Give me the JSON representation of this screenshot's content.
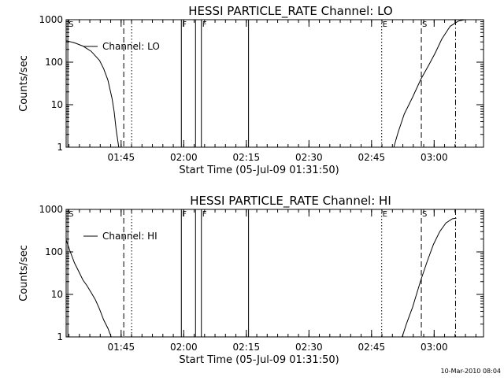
{
  "footer": {
    "timestamp": "10-Mar-2010 08:04"
  },
  "chart_data": [
    {
      "type": "line",
      "title": "HESSI PARTICLE_RATE Channel: LO",
      "xlabel": "Start Time (05-Jul-09 01:31:50)",
      "ylabel": "Counts/sec",
      "yscale": "log",
      "ylim": [
        1,
        1000
      ],
      "xlim_minutes": [
        0,
        100
      ],
      "xticks": [
        {
          "label": "01:45",
          "value": 13.17
        },
        {
          "label": "02:00",
          "value": 28.17
        },
        {
          "label": "02:15",
          "value": 43.17
        },
        {
          "label": "02:30",
          "value": 58.17
        },
        {
          "label": "02:45",
          "value": 73.17
        },
        {
          "label": "03:00",
          "value": 88.17
        }
      ],
      "yticks": [
        {
          "label": "1",
          "value": 1
        },
        {
          "label": "10",
          "value": 10
        },
        {
          "label": "100",
          "value": 100
        },
        {
          "label": "1000",
          "value": 1000
        }
      ],
      "legend": {
        "label": "Channel: LO",
        "position": "top-left"
      },
      "series": [
        {
          "name": "Channel: LO",
          "segments": [
            {
              "x": [
                0,
                2,
                4,
                6,
                8,
                9,
                10,
                11,
                11.5,
                12,
                12.6
              ],
              "y": [
                320,
                285,
                240,
                180,
                110,
                70,
                38,
                14,
                7,
                2.5,
                1
              ]
            },
            {
              "x": [
                78.5,
                79.5,
                81,
                83,
                85,
                87,
                88.5,
                90,
                92,
                94,
                95.5
              ],
              "y": [
                1,
                2.2,
                6,
                15,
                40,
                90,
                170,
                350,
                700,
                930,
                1000
              ]
            }
          ]
        }
      ],
      "events": [
        {
          "label": "S",
          "x": 0.4,
          "style": "solid"
        },
        {
          "label": "",
          "x": 13.8,
          "style": "dashed"
        },
        {
          "label": "",
          "x": 15.7,
          "style": "dotted"
        },
        {
          "label": "F",
          "x": 27.6,
          "style": "solid"
        },
        {
          "label": "",
          "x": 31.0,
          "style": "solid"
        },
        {
          "label": "F",
          "x": 32.4,
          "style": "solid"
        },
        {
          "label": "",
          "x": 43.7,
          "style": "solid"
        },
        {
          "label": "E",
          "x": 75.6,
          "style": "dotted"
        },
        {
          "label": "S",
          "x": 85.1,
          "style": "dashed"
        },
        {
          "label": "",
          "x": 93.3,
          "style": "dashdot"
        }
      ]
    },
    {
      "type": "line",
      "title": "HESSI PARTICLE_RATE Channel: HI",
      "xlabel": "Start Time (05-Jul-09 01:31:50)",
      "ylabel": "Counts/sec",
      "yscale": "log",
      "ylim": [
        1,
        1000
      ],
      "xlim_minutes": [
        0,
        100
      ],
      "xticks": [
        {
          "label": "01:45",
          "value": 13.17
        },
        {
          "label": "02:00",
          "value": 28.17
        },
        {
          "label": "02:15",
          "value": 43.17
        },
        {
          "label": "02:30",
          "value": 58.17
        },
        {
          "label": "02:45",
          "value": 73.17
        },
        {
          "label": "03:00",
          "value": 88.17
        }
      ],
      "yticks": [
        {
          "label": "1",
          "value": 1
        },
        {
          "label": "10",
          "value": 10
        },
        {
          "label": "100",
          "value": 100
        },
        {
          "label": "1000",
          "value": 1000
        }
      ],
      "legend": {
        "label": "Channel: HI",
        "position": "top-left"
      },
      "series": [
        {
          "name": "Channel: HI",
          "segments": [
            {
              "x": [
                0,
                1,
                2,
                3,
                4,
                5,
                6,
                7,
                8,
                9,
                10,
                10.8
              ],
              "y": [
                190,
                100,
                55,
                35,
                22,
                16,
                11,
                7.5,
                4.5,
                2.5,
                1.6,
                1
              ]
            },
            {
              "x": [
                80.5,
                81.5,
                83,
                85,
                86.5,
                88,
                89.5,
                91,
                92.5,
                93.5
              ],
              "y": [
                1,
                2,
                5,
                22,
                60,
                150,
                300,
                480,
                600,
                620
              ]
            }
          ]
        }
      ],
      "events": [
        {
          "label": "S",
          "x": 0.4,
          "style": "solid"
        },
        {
          "label": "",
          "x": 13.8,
          "style": "dashed"
        },
        {
          "label": "",
          "x": 15.7,
          "style": "dotted"
        },
        {
          "label": "F",
          "x": 27.6,
          "style": "solid"
        },
        {
          "label": "",
          "x": 31.0,
          "style": "solid"
        },
        {
          "label": "F",
          "x": 32.4,
          "style": "solid"
        },
        {
          "label": "",
          "x": 43.7,
          "style": "solid"
        },
        {
          "label": "E",
          "x": 75.6,
          "style": "dotted"
        },
        {
          "label": "S",
          "x": 85.1,
          "style": "dashed"
        },
        {
          "label": "",
          "x": 93.3,
          "style": "dashdot"
        }
      ]
    }
  ]
}
